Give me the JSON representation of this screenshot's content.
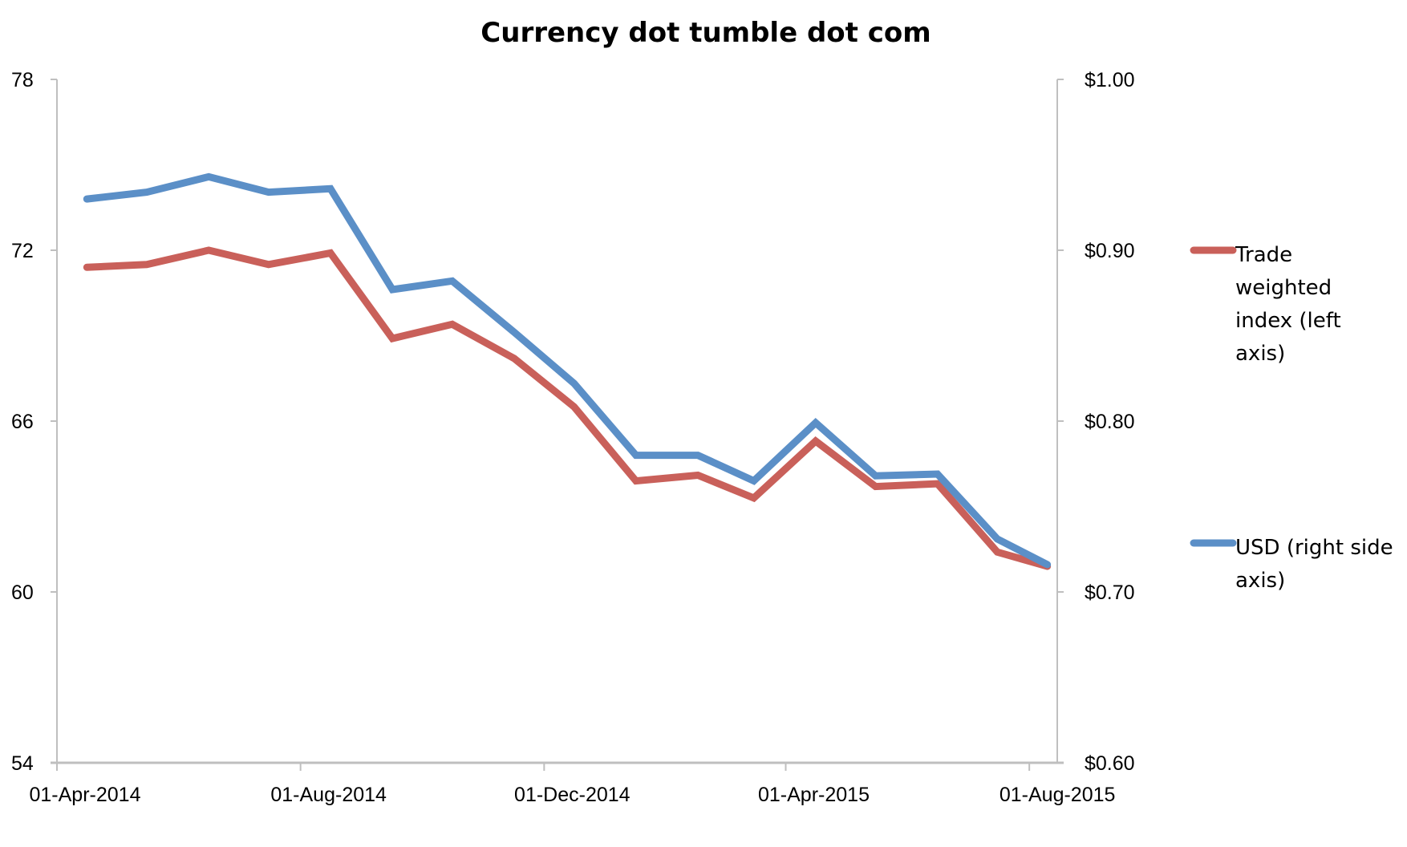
{
  "chart_data": {
    "type": "line",
    "title": "Currency dot tumble dot com",
    "xlabel": "",
    "ylabel_left": "",
    "ylabel_right": "",
    "x_tick_labels": [
      "01-Apr-2014",
      "01-Aug-2014",
      "01-Dec-2014",
      "01-Apr-2015",
      "01-Aug-2015"
    ],
    "x_range": [
      "2014-04-01",
      "2015-08-15"
    ],
    "y_left": {
      "range": [
        54,
        78
      ],
      "ticks": [
        54,
        60,
        66,
        72,
        78
      ],
      "tick_labels": [
        "54",
        "60",
        "66",
        "72",
        "78"
      ]
    },
    "y_right": {
      "range": [
        0.6,
        1.0
      ],
      "ticks": [
        0.6,
        0.7,
        0.8,
        0.9,
        1.0
      ],
      "tick_labels": [
        "$0.60",
        "$0.70",
        "$0.80",
        "$0.90",
        "$1.00"
      ]
    },
    "x": [
      "2014-04-16",
      "2014-05-16",
      "2014-06-16",
      "2014-07-16",
      "2014-08-16",
      "2014-09-16",
      "2014-10-16",
      "2014-11-16",
      "2014-12-16",
      "2015-01-16",
      "2015-02-16",
      "2015-03-16",
      "2015-04-16",
      "2015-05-16",
      "2015-06-16",
      "2015-07-16",
      "2015-08-10"
    ],
    "series": [
      {
        "name": "Trade weighted index (left axis)",
        "axis": "left",
        "color": "#c9605a",
        "values": [
          71.4,
          71.5,
          72.0,
          71.5,
          71.9,
          68.9,
          69.4,
          68.2,
          66.5,
          63.9,
          64.1,
          63.3,
          65.3,
          63.7,
          63.8,
          61.4,
          60.9
        ]
      },
      {
        "name": "USD (right side axis)",
        "axis": "right",
        "color": "#5b8fc7",
        "values": [
          0.93,
          0.934,
          0.943,
          0.934,
          0.936,
          0.877,
          0.882,
          0.852,
          0.822,
          0.78,
          0.78,
          0.765,
          0.799,
          0.768,
          0.769,
          0.731,
          0.716
        ]
      }
    ],
    "legend": {
      "position": "right",
      "entries": [
        {
          "lines": [
            "Trade",
            "weighted",
            "index (left",
            "axis)"
          ],
          "color": "#c9605a"
        },
        {
          "lines": [
            "USD (right side",
            "axis)"
          ],
          "color": "#5b8fc7"
        }
      ]
    },
    "grid": false,
    "axis_color": "#bfbfbf"
  }
}
